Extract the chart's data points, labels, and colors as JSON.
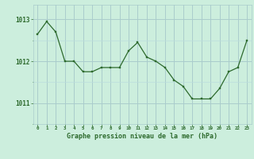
{
  "x": [
    0,
    1,
    2,
    3,
    4,
    5,
    6,
    7,
    8,
    9,
    10,
    11,
    12,
    13,
    14,
    15,
    16,
    17,
    18,
    19,
    20,
    21,
    22,
    23
  ],
  "y": [
    1012.65,
    1012.95,
    1012.7,
    1012.0,
    1012.0,
    1011.75,
    1011.75,
    1011.85,
    1011.85,
    1011.85,
    1012.25,
    1012.45,
    1012.1,
    1012.0,
    1011.85,
    1011.55,
    1011.4,
    1011.1,
    1011.1,
    1011.1,
    1011.35,
    1011.75,
    1011.85,
    1012.5
  ],
  "line_color": "#2d6a2d",
  "marker_color": "#2d6a2d",
  "bg_color": "#cceedd",
  "grid_color_major": "#aacccc",
  "grid_color_minor": "#bbdddd",
  "xlabel": "Graphe pression niveau de la mer (hPa)",
  "xlabel_color": "#2d6a2d",
  "tick_color": "#2d6a2d",
  "ylim_min": 1010.5,
  "ylim_max": 1013.35,
  "yticks": [
    1011,
    1012,
    1013
  ],
  "xticks": [
    0,
    1,
    2,
    3,
    4,
    5,
    6,
    7,
    8,
    9,
    10,
    11,
    12,
    13,
    14,
    15,
    16,
    17,
    18,
    19,
    20,
    21,
    22,
    23
  ]
}
